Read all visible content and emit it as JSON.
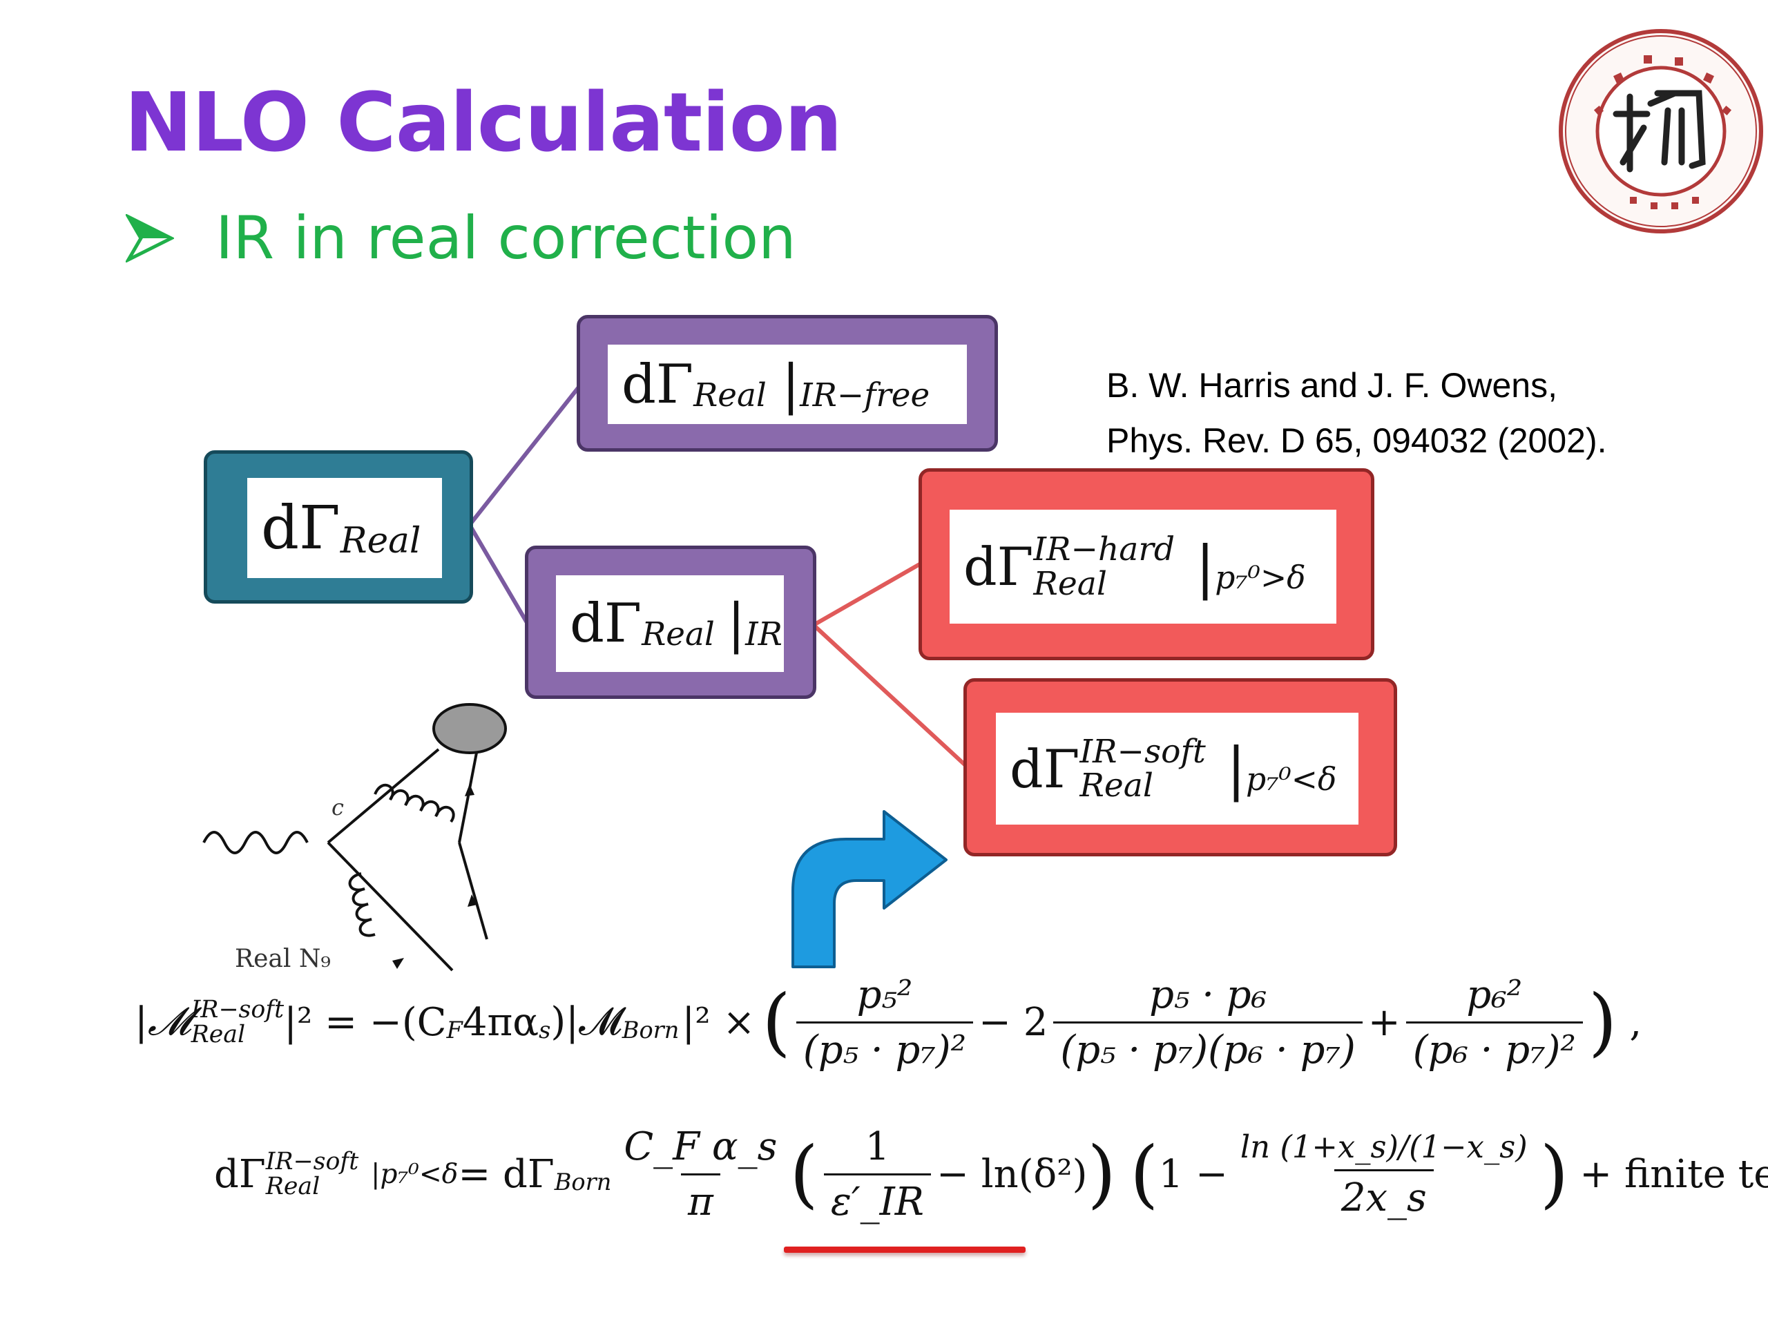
{
  "slide": {
    "title": "NLO Calculation",
    "bullet_glyph": "➢",
    "bullet_text": "IR in real correction",
    "citation_line1": "B. W. Harris and J. F. Owens,",
    "citation_line2": "Phys. Rev. D 65, 094032 (2002).",
    "logo_icon": "university-seal-icon"
  },
  "boxes": {
    "root": {
      "d": "dΓ",
      "sub": "Real"
    },
    "ir_free": {
      "d": "dΓ",
      "sub": "Real",
      "bar": "|",
      "cond": "IR−free"
    },
    "ir": {
      "d": "dΓ",
      "sub": "Real",
      "bar": "|",
      "cond": "IR"
    },
    "ir_hard": {
      "d": "dΓ",
      "sup": "IR−hard",
      "sub": "Real",
      "bar": "|",
      "cond": "p₇⁰>δ"
    },
    "ir_soft": {
      "d": "dΓ",
      "sup": "IR−soft",
      "sub": "Real",
      "bar": "|",
      "cond": "p₇⁰<δ"
    }
  },
  "feynman": {
    "quark_label": "c",
    "caption": "Real N₉"
  },
  "equation1": {
    "lhs": "|𝓜",
    "lhs_sup": "IR−soft",
    "lhs_sub": "Real",
    "lhs_tail": "|² = −(C",
    "cf_sub": "F",
    "mid": "4πα",
    "alpha_sub": "s",
    "born": ")|𝓜",
    "born_sub": "Born",
    "times": "|² ×",
    "t1_num": "p₅²",
    "t1_den": "(p₅ · p₇)²",
    "minus2": "− 2",
    "t2_num": "p₅ · p₆",
    "t2_den": "(p₅ · p₇)(p₆ · p₇)",
    "plus": "+",
    "t3_num": "p₆²",
    "t3_den": "(p₆ · p₇)²",
    "comma": ","
  },
  "equation2": {
    "lhs": "dΓ",
    "lhs_sup": "IR−soft",
    "lhs_sub": "Real",
    "cond": "|p₇⁰<δ",
    "eq": "= dΓ",
    "born_sub": "Born",
    "pref_num": "C_F α_s",
    "pref_den": "π",
    "one": "1",
    "eps": "ε′_IR",
    "ln_delta": "− ln(δ²)",
    "one_minus": "1 −",
    "ln_num": "ln (1+x_s)/(1−x_s)",
    "ln_den": "2x_s",
    "finite": "+ finite terms"
  },
  "colors": {
    "title": "#7d35d2",
    "bullet": "#20b04a",
    "teal": "#2f7d95",
    "purple": "#8a6aac",
    "red": "#f25a5a",
    "arrow": "#1e9be0",
    "underline": "#e02020"
  }
}
